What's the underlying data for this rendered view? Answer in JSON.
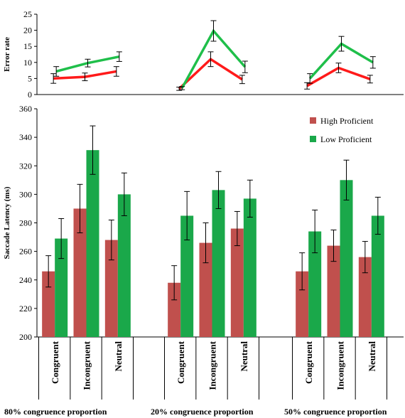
{
  "colors": {
    "high": "#c0504d",
    "low": "#1aa84a",
    "error_high": "#ff1a1a",
    "error_low": "#1fbf4a"
  },
  "chart_data": [
    {
      "type": "line",
      "ylabel": "Error rate",
      "ylim": [
        0,
        25
      ],
      "yticks": [
        0,
        5,
        10,
        15,
        20,
        25
      ],
      "grid": false,
      "groups": [
        {
          "categories": [
            "Congruent",
            "Incongruent",
            "Neutral"
          ],
          "series": [
            {
              "values": [
                5.0,
                5.5,
                7.2
              ],
              "errors": [
                1.5,
                1.2,
                1.5
              ]
            },
            {
              "values": [
                7.2,
                9.8,
                11.8
              ],
              "errors": [
                1.5,
                1.2,
                1.5
              ]
            }
          ]
        },
        {
          "categories": [
            "Congruent",
            "Incongruent",
            "Neutral"
          ],
          "series": [
            {
              "values": [
                1.8,
                11.0,
                4.7
              ],
              "errors": [
                0.5,
                2.3,
                1.3
              ]
            },
            {
              "values": [
                2.0,
                19.8,
                8.6
              ],
              "errors": [
                0.5,
                3.2,
                1.8
              ]
            }
          ]
        },
        {
          "categories": [
            "Congruent",
            "Incongruent",
            "Neutral"
          ],
          "series": [
            {
              "values": [
                2.7,
                8.3,
                4.8
              ],
              "errors": [
                1.0,
                1.5,
                1.2
              ]
            },
            {
              "values": [
                5.0,
                15.8,
                10.0
              ],
              "errors": [
                1.5,
                2.3,
                1.8
              ]
            }
          ]
        }
      ]
    },
    {
      "type": "bar",
      "ylabel": "Saccade Latency (ms)",
      "ylim": [
        200,
        360
      ],
      "yticks": [
        200,
        220,
        240,
        260,
        280,
        300,
        320,
        340,
        360
      ],
      "grid": false,
      "legend_position": "top-right",
      "legend": [
        "High Proficient",
        "Low Proficient"
      ],
      "groups": [
        {
          "label": "80% congruence proportion",
          "categories": [
            "Congruent",
            "Incongruent",
            "Neutral"
          ],
          "series": [
            {
              "name": "High Proficient",
              "values": [
                246,
                290,
                268
              ],
              "errors": [
                11,
                17,
                14
              ]
            },
            {
              "name": "Low Proficient",
              "values": [
                269,
                331,
                300
              ],
              "errors": [
                14,
                17,
                15
              ]
            }
          ]
        },
        {
          "label": "20% congruence proportion",
          "categories": [
            "Congruent",
            "Incongruent",
            "Neutral"
          ],
          "series": [
            {
              "name": "High Proficient",
              "values": [
                238,
                266,
                276
              ],
              "errors": [
                12,
                14,
                12
              ]
            },
            {
              "name": "Low Proficient",
              "values": [
                285,
                303,
                297
              ],
              "errors": [
                17,
                13,
                13
              ]
            }
          ]
        },
        {
          "label": "50% congruence proportion",
          "categories": [
            "Congruent",
            "Incongruent",
            "Neutral"
          ],
          "series": [
            {
              "name": "High Proficient",
              "values": [
                246,
                264,
                256
              ],
              "errors": [
                13,
                11,
                11
              ]
            },
            {
              "name": "Low Proficient",
              "values": [
                274,
                310,
                285
              ],
              "errors": [
                15,
                14,
                13
              ]
            }
          ]
        }
      ]
    }
  ]
}
